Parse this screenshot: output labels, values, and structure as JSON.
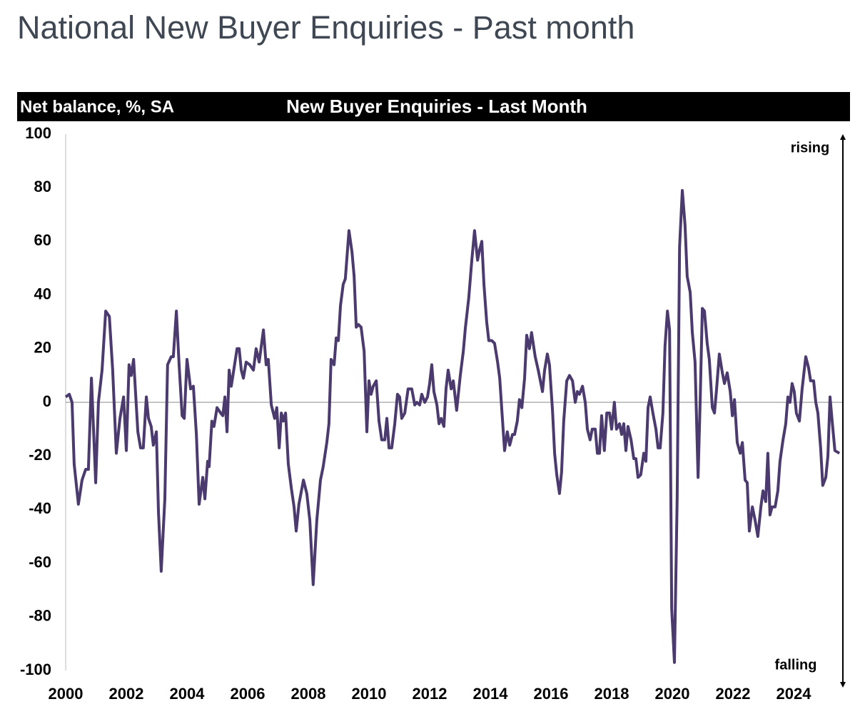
{
  "header": {
    "title": "National New Buyer Enquiries - Past month"
  },
  "chart_data": {
    "type": "line",
    "title": "New Buyer Enquiries - Last Month",
    "y_label": "Net balance, %, SA",
    "annotations": [
      "rising",
      "falling"
    ],
    "color": "#4a3a6e",
    "xlim": [
      2000,
      2025.6
    ],
    "xticks": [
      2000,
      2002,
      2004,
      2006,
      2008,
      2010,
      2012,
      2014,
      2016,
      2018,
      2020,
      2022,
      2024
    ],
    "ylim": [
      -100,
      100
    ],
    "yticks": [
      -100,
      -80,
      -60,
      -40,
      -20,
      0,
      20,
      40,
      60,
      80,
      100
    ],
    "grid": false,
    "x": [
      2000.0,
      2000.12,
      2000.21,
      2000.28,
      2000.42,
      2000.54,
      2000.66,
      2000.75,
      2000.85,
      2000.99,
      2001.08,
      2001.2,
      2001.32,
      2001.44,
      2001.55,
      2001.67,
      2001.79,
      2001.91,
      2002.0,
      2002.09,
      2002.16,
      2002.24,
      2002.38,
      2002.47,
      2002.56,
      2002.66,
      2002.73,
      2002.82,
      2002.89,
      2002.99,
      2003.06,
      2003.15,
      2003.27,
      2003.36,
      2003.48,
      2003.55,
      2003.65,
      2003.74,
      2003.84,
      2003.91,
      2004.0,
      2004.12,
      2004.21,
      2004.31,
      2004.4,
      2004.52,
      2004.59,
      2004.68,
      2004.73,
      2004.82,
      2004.89,
      2004.99,
      2005.11,
      2005.18,
      2005.25,
      2005.32,
      2005.39,
      2005.46,
      2005.65,
      2005.72,
      2005.79,
      2005.86,
      2005.95,
      2006.07,
      2006.19,
      2006.28,
      2006.38,
      2006.52,
      2006.61,
      2006.68,
      2006.78,
      2006.89,
      2006.96,
      2007.04,
      2007.11,
      2007.18,
      2007.25,
      2007.34,
      2007.44,
      2007.53,
      2007.6,
      2007.69,
      2007.84,
      2007.95,
      2008.05,
      2008.16,
      2008.28,
      2008.4,
      2008.49,
      2008.61,
      2008.68,
      2008.75,
      2008.85,
      2008.92,
      2008.99,
      2009.06,
      2009.15,
      2009.22,
      2009.34,
      2009.44,
      2009.51,
      2009.58,
      2009.65,
      2009.74,
      2009.84,
      2009.93,
      2010.0,
      2010.07,
      2010.14,
      2010.24,
      2010.33,
      2010.42,
      2010.52,
      2010.59,
      2010.66,
      2010.75,
      2010.85,
      2010.94,
      2011.01,
      2011.08,
      2011.18,
      2011.29,
      2011.41,
      2011.51,
      2011.58,
      2011.67,
      2011.74,
      2011.84,
      2011.93,
      2012.0,
      2012.07,
      2012.14,
      2012.24,
      2012.31,
      2012.38,
      2012.47,
      2012.54,
      2012.61,
      2012.71,
      2012.78,
      2012.89,
      2013.01,
      2013.11,
      2013.18,
      2013.29,
      2013.39,
      2013.48,
      2013.58,
      2013.65,
      2013.72,
      2013.79,
      2013.88,
      2013.95,
      2014.05,
      2014.14,
      2014.24,
      2014.31,
      2014.38,
      2014.47,
      2014.56,
      2014.64,
      2014.73,
      2014.8,
      2014.89,
      2014.96,
      2015.04,
      2015.13,
      2015.2,
      2015.29,
      2015.36,
      2015.48,
      2015.58,
      2015.65,
      2015.72,
      2015.79,
      2015.88,
      2015.95,
      2016.05,
      2016.12,
      2016.19,
      2016.28,
      2016.35,
      2016.42,
      2016.52,
      2016.61,
      2016.71,
      2016.8,
      2016.87,
      2016.94,
      2017.04,
      2017.13,
      2017.2,
      2017.29,
      2017.36,
      2017.46,
      2017.53,
      2017.6,
      2017.67,
      2017.76,
      2017.84,
      2017.93,
      2018.0,
      2018.09,
      2018.16,
      2018.26,
      2018.33,
      2018.4,
      2018.47,
      2018.54,
      2018.64,
      2018.73,
      2018.8,
      2018.87,
      2018.96,
      2019.06,
      2019.13,
      2019.2,
      2019.27,
      2019.36,
      2019.46,
      2019.53,
      2019.6,
      2019.69,
      2019.76,
      2019.84,
      2019.91,
      2019.98,
      2020.07,
      2020.16,
      2020.24,
      2020.33,
      2020.42,
      2020.49,
      2020.59,
      2020.66,
      2020.75,
      2020.85,
      2020.92,
      2020.99,
      2021.06,
      2021.15,
      2021.22,
      2021.32,
      2021.39,
      2021.46,
      2021.55,
      2021.65,
      2021.72,
      2021.81,
      2021.91,
      2021.98,
      2022.05,
      2022.14,
      2022.24,
      2022.31,
      2022.4,
      2022.47,
      2022.54,
      2022.64,
      2022.73,
      2022.82,
      2022.92,
      2022.99,
      2023.08,
      2023.15,
      2023.22,
      2023.29,
      2023.39,
      2023.48,
      2023.55,
      2023.65,
      2023.74,
      2023.81,
      2023.88,
      2023.95,
      2024.02,
      2024.09,
      2024.19,
      2024.28,
      2024.4,
      2024.49,
      2024.56,
      2024.66,
      2024.73,
      2024.8,
      2024.89,
      2024.96,
      2025.06,
      2025.13,
      2025.2,
      2025.27,
      2025.36,
      2025.51
    ],
    "values": [
      2,
      3,
      0,
      -23,
      -38,
      -29,
      -25,
      -25,
      9,
      -30,
      0,
      12,
      34,
      32,
      12,
      -19,
      -6,
      2,
      -18,
      14,
      10,
      16,
      -11,
      -17,
      -17,
      2,
      -6,
      -9,
      -16,
      -11,
      -41,
      -63,
      -36,
      14,
      17,
      17,
      34,
      14,
      -5,
      -6,
      16,
      5,
      6,
      -12,
      -38,
      -28,
      -36,
      -22,
      -24,
      -7,
      -9,
      -2,
      -4,
      -5,
      2,
      -11,
      12,
      6,
      20,
      20,
      12,
      9,
      15,
      14,
      12,
      20,
      15,
      27,
      14,
      16,
      -1,
      -6,
      -2,
      -17,
      -4,
      -7,
      -4,
      -23,
      -32,
      -39,
      -48,
      -38,
      -29,
      -34,
      -44,
      -68,
      -44,
      -29,
      -24,
      -15,
      -8,
      16,
      14,
      24,
      23,
      36,
      44,
      46,
      64,
      56,
      47,
      28,
      29,
      28,
      19,
      -11,
      8,
      3,
      6,
      8,
      -7,
      -14,
      -14,
      -6,
      -17,
      -17,
      -8,
      3,
      2,
      -6,
      -4,
      5,
      5,
      -1,
      0,
      -1,
      3,
      0,
      2,
      7,
      14,
      4,
      -1,
      -8,
      -6,
      -9,
      5,
      12,
      5,
      8,
      -3,
      10,
      19,
      28,
      39,
      53,
      64,
      53,
      57,
      60,
      44,
      30,
      23,
      23,
      22,
      15,
      9,
      -3,
      -18,
      -11,
      -16,
      -12,
      -12,
      -7,
      1,
      -2,
      9,
      25,
      20,
      26,
      17,
      12,
      8,
      4,
      12,
      18,
      14,
      -3,
      -19,
      -27,
      -34,
      -26,
      -7,
      8,
      10,
      8,
      0,
      4,
      3,
      6,
      0,
      -10,
      -14,
      -10,
      -10,
      -19,
      -19,
      -5,
      -18,
      -4,
      -4,
      -10,
      0,
      -10,
      -8,
      -12,
      -8,
      -18,
      -9,
      -14,
      -21,
      -21,
      -28,
      -27,
      -19,
      -22,
      -2,
      2,
      -4,
      -10,
      -17,
      -17,
      -4,
      21,
      34,
      27,
      -77,
      -97,
      -36,
      58,
      79,
      66,
      47,
      41,
      26,
      15,
      -28,
      1,
      35,
      34,
      22,
      16,
      -2,
      -4,
      5,
      18,
      11,
      7,
      11,
      4,
      -5,
      1,
      -15,
      -19,
      -15,
      -29,
      -30,
      -48,
      -39,
      -44,
      -50,
      -39,
      -33,
      -37,
      -19,
      -42,
      -39,
      -39,
      -33,
      -22,
      -14,
      -8,
      2,
      0,
      7,
      4,
      -4,
      -7,
      5,
      17,
      13,
      8,
      8,
      0,
      -4,
      -17,
      -31,
      -28,
      -20,
      2,
      -7,
      -18,
      -19
    ]
  }
}
